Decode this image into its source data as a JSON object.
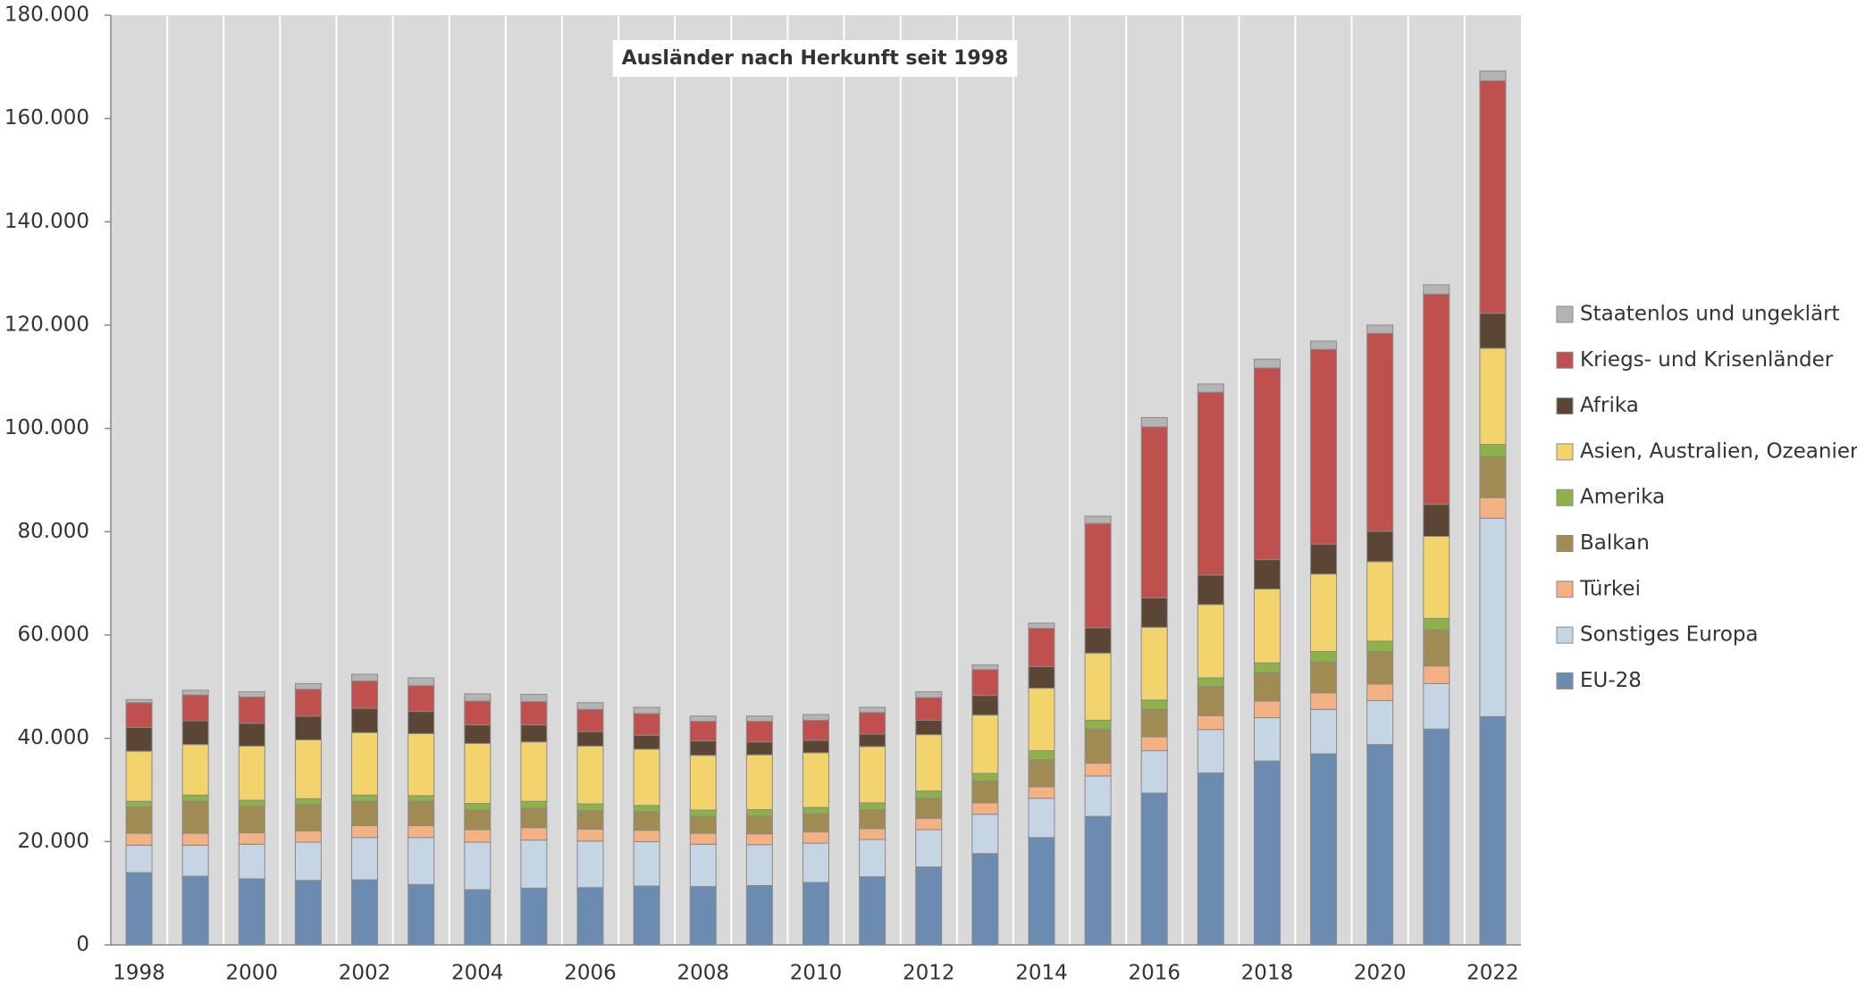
{
  "chart_data": {
    "type": "stacked_bar",
    "title": "Ausländer nach Herkunft seit 1998",
    "categories": [
      "1998",
      null,
      "2000",
      null,
      "2002",
      null,
      "2004",
      null,
      "2006",
      null,
      "2008",
      null,
      "2010",
      null,
      "2012",
      null,
      "2014",
      null,
      "2016",
      null,
      "2018",
      null,
      "2020",
      null,
      "2022"
    ],
    "series": [
      {
        "name": "EU-28",
        "color": "#6b8cb0",
        "values": [
          14000,
          13300,
          12800,
          12500,
          12600,
          11700,
          10700,
          11000,
          11100,
          11400,
          11300,
          11500,
          12100,
          13200,
          15100,
          17700,
          20800,
          24900,
          29400,
          33300,
          35600,
          37000,
          38800,
          41800,
          44200
        ]
      },
      {
        "name": "Sonstiges Europa",
        "color": "#c6d5e4",
        "values": [
          5300,
          6000,
          6700,
          7400,
          8200,
          9100,
          9200,
          9300,
          9000,
          8600,
          8200,
          7900,
          7600,
          7200,
          7200,
          7600,
          7600,
          7800,
          8200,
          8400,
          8400,
          8600,
          8500,
          8800,
          38400
        ]
      },
      {
        "name": "Türkei",
        "color": "#f4b183",
        "values": [
          2300,
          2300,
          2200,
          2200,
          2300,
          2300,
          2400,
          2400,
          2300,
          2200,
          2100,
          2100,
          2200,
          2100,
          2200,
          2200,
          2200,
          2500,
          2700,
          2700,
          3200,
          3200,
          3200,
          3400,
          4000
        ]
      },
      {
        "name": "Balkan",
        "color": "#a08c52",
        "values": [
          5100,
          6200,
          5100,
          5100,
          4700,
          4700,
          3800,
          3800,
          3600,
          3600,
          3300,
          3500,
          3500,
          3700,
          3900,
          4200,
          5300,
          6600,
          5300,
          5600,
          5500,
          6000,
          6300,
          7000,
          7900
        ]
      },
      {
        "name": "Amerika",
        "color": "#8fb14a",
        "values": [
          1100,
          1200,
          1200,
          1100,
          1200,
          1100,
          1300,
          1300,
          1300,
          1200,
          1200,
          1200,
          1200,
          1300,
          1400,
          1500,
          1700,
          1700,
          1800,
          1700,
          1900,
          2000,
          2000,
          2200,
          2400
        ]
      },
      {
        "name": "Asien, Australien, Ozeanien",
        "color": "#f3d36b",
        "values": [
          9700,
          9800,
          10500,
          11400,
          12100,
          12000,
          11600,
          11500,
          11200,
          10900,
          10600,
          10600,
          10600,
          10900,
          10900,
          11300,
          12100,
          13000,
          14100,
          14200,
          14300,
          15000,
          15400,
          15900,
          18600
        ]
      },
      {
        "name": "Afrika",
        "color": "#5b4636",
        "values": [
          4600,
          4600,
          4400,
          4600,
          4700,
          4300,
          3600,
          3300,
          2800,
          2700,
          2800,
          2500,
          2400,
          2400,
          2800,
          3800,
          4200,
          4900,
          5700,
          5700,
          5700,
          5800,
          5900,
          6200,
          6800
        ]
      },
      {
        "name": "Kriegs- und Krisenländer",
        "color": "#c0504d",
        "values": [
          4800,
          5000,
          5100,
          5200,
          5300,
          5000,
          4600,
          4500,
          4300,
          4200,
          3800,
          4000,
          3900,
          4200,
          4400,
          5000,
          7400,
          20200,
          33100,
          35400,
          37100,
          37700,
          38300,
          40700,
          45000
        ]
      },
      {
        "name": "Staatenlos und ungeklärt",
        "color": "#b4b4b4",
        "values": [
          600,
          900,
          1000,
          1100,
          1300,
          1500,
          1400,
          1400,
          1300,
          1200,
          1000,
          1000,
          1100,
          1000,
          1100,
          900,
          1000,
          1400,
          1800,
          1600,
          1700,
          1600,
          1600,
          1800,
          1900
        ]
      }
    ],
    "ylim": [
      0,
      180000
    ],
    "yticks": [
      0,
      {
        "value": 20000,
        "label": "20.000"
      },
      {
        "value": 40000,
        "label": "40.000"
      },
      {
        "value": 60000,
        "label": "60.000"
      },
      {
        "value": 80000,
        "label": "80.000"
      },
      {
        "value": 100000,
        "label": "100.000"
      },
      {
        "value": 120000,
        "label": "120.000"
      },
      {
        "value": 140000,
        "label": "140.000"
      },
      {
        "value": 160000,
        "label": "160.000"
      },
      {
        "value": 180000,
        "label": "180.000"
      }
    ],
    "grid": false,
    "legend": "right"
  }
}
